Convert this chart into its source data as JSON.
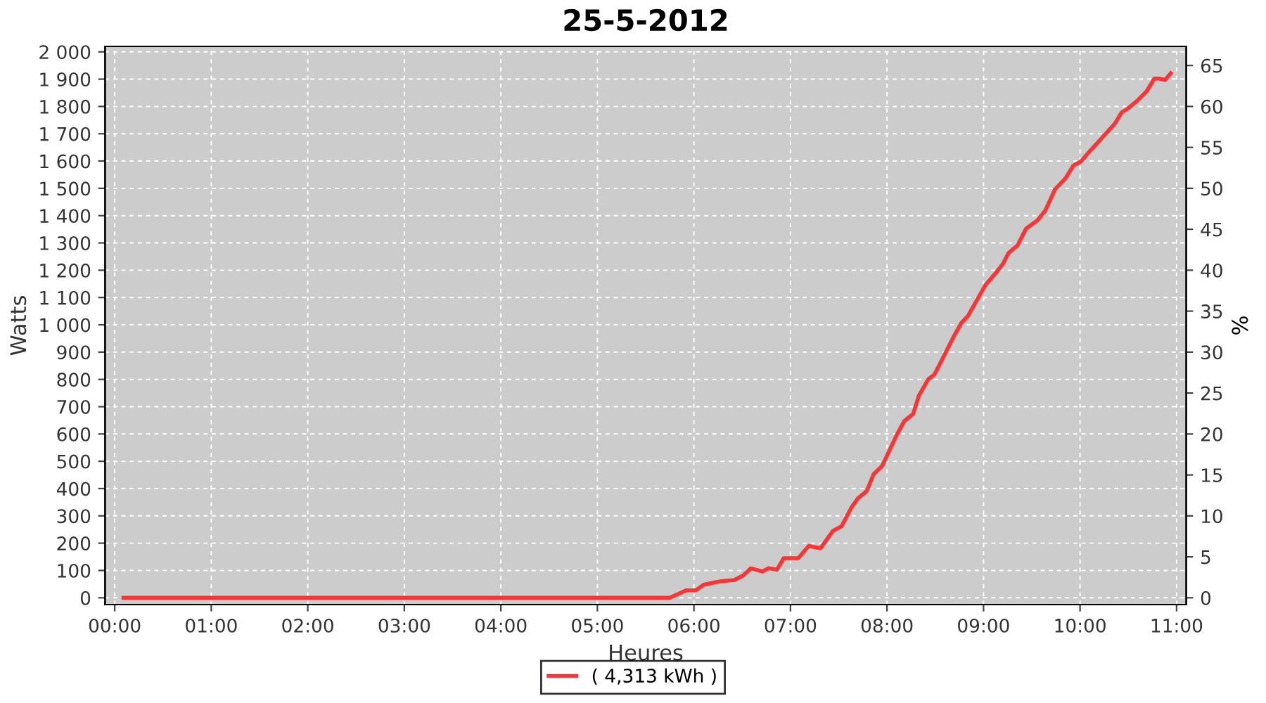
{
  "chart_data": {
    "type": "line",
    "title": "25-5-2012",
    "xlabel": "Heures",
    "ylabel": "Watts",
    "y2label": "%",
    "series": [
      {
        "name": "( 4,313 kWh )",
        "color": "#ff3333",
        "x": [
          0.09,
          5.75,
          5.92,
          6.02,
          6.1,
          6.27,
          6.42,
          6.51,
          6.59,
          6.71,
          6.77,
          6.86,
          6.93,
          7.08,
          7.19,
          7.31,
          7.44,
          7.53,
          7.63,
          7.7,
          7.79,
          7.86,
          7.95,
          8.1,
          8.18,
          8.27,
          8.33,
          8.43,
          8.49,
          8.58,
          8.69,
          8.77,
          8.84,
          9.02,
          9.12,
          9.2,
          9.26,
          9.35,
          9.44,
          9.56,
          9.64,
          9.74,
          9.85,
          9.93,
          10.01,
          10.11,
          10.23,
          10.36,
          10.43,
          10.5,
          10.59,
          10.69,
          10.77,
          10.82,
          10.88,
          10.94
        ],
        "values": [
          0,
          0,
          27,
          27,
          48,
          60,
          65,
          82,
          108,
          96,
          108,
          103,
          145,
          145,
          190,
          181,
          245,
          262,
          330,
          365,
          391,
          452,
          483,
          596,
          648,
          673,
          740,
          802,
          817,
          879,
          956,
          1007,
          1033,
          1146,
          1187,
          1223,
          1264,
          1290,
          1352,
          1383,
          1419,
          1496,
          1537,
          1583,
          1599,
          1640,
          1686,
          1737,
          1778,
          1794,
          1820,
          1856,
          1902,
          1902,
          1897,
          1922
        ]
      }
    ],
    "xlim": [
      -0.1,
      11.1
    ],
    "xticks": [
      {
        "value": 0,
        "label": "00:00"
      },
      {
        "value": 1,
        "label": "01:00"
      },
      {
        "value": 2,
        "label": "02:00"
      },
      {
        "value": 3,
        "label": "03:00"
      },
      {
        "value": 4,
        "label": "04:00"
      },
      {
        "value": 5,
        "label": "05:00"
      },
      {
        "value": 6,
        "label": "06:00"
      },
      {
        "value": 7,
        "label": "07:00"
      },
      {
        "value": 8,
        "label": "08:00"
      },
      {
        "value": 9,
        "label": "09:00"
      },
      {
        "value": 10,
        "label": "10:00"
      },
      {
        "value": 11,
        "label": "11:00"
      }
    ],
    "ylim": [
      -25,
      2020
    ],
    "yticks": [
      0,
      100,
      200,
      300,
      400,
      500,
      600,
      700,
      800,
      900,
      {
        "value": 1000,
        "label": "1 000"
      },
      {
        "value": 1100,
        "label": "1 100"
      },
      {
        "value": 1200,
        "label": "1 200"
      },
      {
        "value": 1300,
        "label": "1 300"
      },
      {
        "value": 1400,
        "label": "1 400"
      },
      {
        "value": 1500,
        "label": "1 500"
      },
      {
        "value": 1600,
        "label": "1 600"
      },
      {
        "value": 1700,
        "label": "1 700"
      },
      {
        "value": 1800,
        "label": "1 800"
      },
      {
        "value": 1900,
        "label": "1 900"
      },
      {
        "value": 2000,
        "label": "2 000"
      }
    ],
    "y2lim": [
      -0.83,
      67.33
    ],
    "y2ticks": [
      0,
      5,
      10,
      15,
      20,
      25,
      30,
      35,
      40,
      45,
      50,
      55,
      60,
      65
    ],
    "grid": true,
    "legend": "bottom",
    "marker": "none",
    "line_style": "solid"
  }
}
